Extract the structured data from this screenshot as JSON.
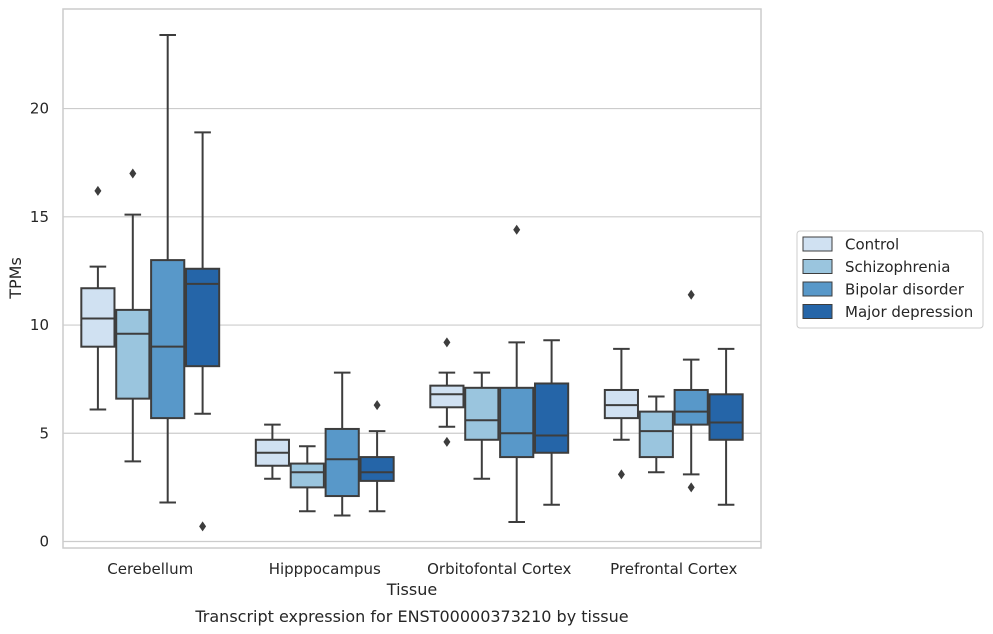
{
  "chart_data": {
    "type": "box",
    "caption": "Transcript expression for ENST00000373210 by tissue",
    "xlabel": "Tissue",
    "ylabel": "TPMs",
    "ylim": [
      -0.3,
      24.6
    ],
    "yticks": [
      0,
      5,
      10,
      15,
      20
    ],
    "grid": "horizontal",
    "legend_position": "right",
    "categories": [
      "Cerebellum",
      "Hipppocampus",
      "Orbitofontal Cortex",
      "Prefrontal Cortex"
    ],
    "series": [
      {
        "name": "Control",
        "color": "#d0e1f2",
        "boxes": [
          {
            "whislo": 6.1,
            "q1": 9.0,
            "med": 10.3,
            "q3": 11.7,
            "whishi": 12.7,
            "fliers": [
              16.2
            ]
          },
          {
            "whislo": 2.9,
            "q1": 3.5,
            "med": 4.1,
            "q3": 4.7,
            "whishi": 5.4,
            "fliers": []
          },
          {
            "whislo": 5.3,
            "q1": 6.2,
            "med": 6.8,
            "q3": 7.2,
            "whishi": 7.8,
            "fliers": [
              9.2,
              4.6
            ]
          },
          {
            "whislo": 4.7,
            "q1": 5.7,
            "med": 6.3,
            "q3": 7.0,
            "whishi": 8.9,
            "fliers": [
              3.1
            ]
          }
        ]
      },
      {
        "name": "Schizophrenia",
        "color": "#9ac5de",
        "boxes": [
          {
            "whislo": 3.7,
            "q1": 6.6,
            "med": 9.6,
            "q3": 10.7,
            "whishi": 15.1,
            "fliers": [
              17.0
            ]
          },
          {
            "whislo": 1.4,
            "q1": 2.5,
            "med": 3.2,
            "q3": 3.6,
            "whishi": 4.4,
            "fliers": []
          },
          {
            "whislo": 2.9,
            "q1": 4.7,
            "med": 5.6,
            "q3": 7.1,
            "whishi": 7.8,
            "fliers": []
          },
          {
            "whislo": 3.2,
            "q1": 3.9,
            "med": 5.1,
            "q3": 6.0,
            "whishi": 6.7,
            "fliers": []
          }
        ]
      },
      {
        "name": "Bipolar disorder",
        "color": "#5898c9",
        "boxes": [
          {
            "whislo": 1.8,
            "q1": 5.7,
            "med": 9.0,
            "q3": 13.0,
            "whishi": 23.4,
            "fliers": []
          },
          {
            "whislo": 1.2,
            "q1": 2.1,
            "med": 3.8,
            "q3": 5.2,
            "whishi": 7.8,
            "fliers": []
          },
          {
            "whislo": 0.9,
            "q1": 3.9,
            "med": 5.0,
            "q3": 7.1,
            "whishi": 9.2,
            "fliers": [
              14.4
            ]
          },
          {
            "whislo": 3.1,
            "q1": 5.4,
            "med": 6.0,
            "q3": 7.0,
            "whishi": 8.4,
            "fliers": [
              11.4,
              2.5
            ]
          }
        ]
      },
      {
        "name": "Major depression",
        "color": "#2565a8",
        "boxes": [
          {
            "whislo": 5.9,
            "q1": 8.1,
            "med": 11.9,
            "q3": 12.6,
            "whishi": 18.9,
            "fliers": [
              0.7
            ]
          },
          {
            "whislo": 1.4,
            "q1": 2.8,
            "med": 3.2,
            "q3": 3.9,
            "whishi": 5.1,
            "fliers": [
              6.3
            ]
          },
          {
            "whislo": 1.7,
            "q1": 4.1,
            "med": 4.9,
            "q3": 7.3,
            "whishi": 9.3,
            "fliers": []
          },
          {
            "whislo": 1.7,
            "q1": 4.7,
            "med": 5.5,
            "q3": 6.8,
            "whishi": 8.9,
            "fliers": []
          }
        ]
      }
    ]
  }
}
